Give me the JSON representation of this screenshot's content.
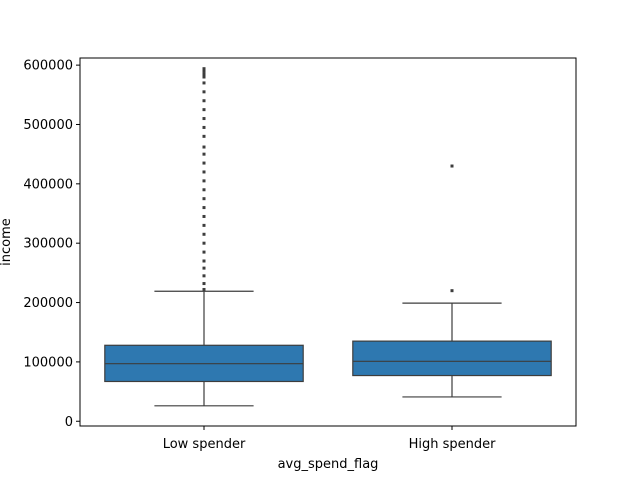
{
  "chart_data": {
    "type": "boxplot",
    "title": "",
    "xlabel": "avg_spend_flag",
    "ylabel": "income",
    "ylim": [
      -8000,
      612000
    ],
    "yticks": [
      0,
      100000,
      200000,
      300000,
      400000,
      500000,
      600000
    ],
    "ytick_labels": [
      "0",
      "100000",
      "200000",
      "300000",
      "400000",
      "500000",
      "600000"
    ],
    "grid": false,
    "legend": "none",
    "box_color": "#2e78b0",
    "line_color": "#3d3d3d",
    "outlier_color": "#3d3d3d",
    "categories": [
      "Low spender",
      "High spender"
    ],
    "boxes": [
      {
        "category": "Low spender",
        "whisker_low": 26000,
        "q1": 67000,
        "median": 97000,
        "q3": 128000,
        "whisker_high": 219000,
        "outliers": [
          222000,
          232000,
          245000,
          258000,
          270000,
          285000,
          300000,
          315000,
          330000,
          345000,
          360000,
          375000,
          390000,
          405000,
          420000,
          435000,
          450000,
          462000,
          480000,
          495000,
          510000,
          525000,
          540000,
          555000,
          570000,
          580000,
          585000,
          590000,
          594000
        ]
      },
      {
        "category": "High spender",
        "whisker_low": 41000,
        "q1": 77000,
        "median": 101000,
        "q3": 135000,
        "whisker_high": 199000,
        "outliers": [
          220000,
          430000
        ]
      }
    ]
  }
}
